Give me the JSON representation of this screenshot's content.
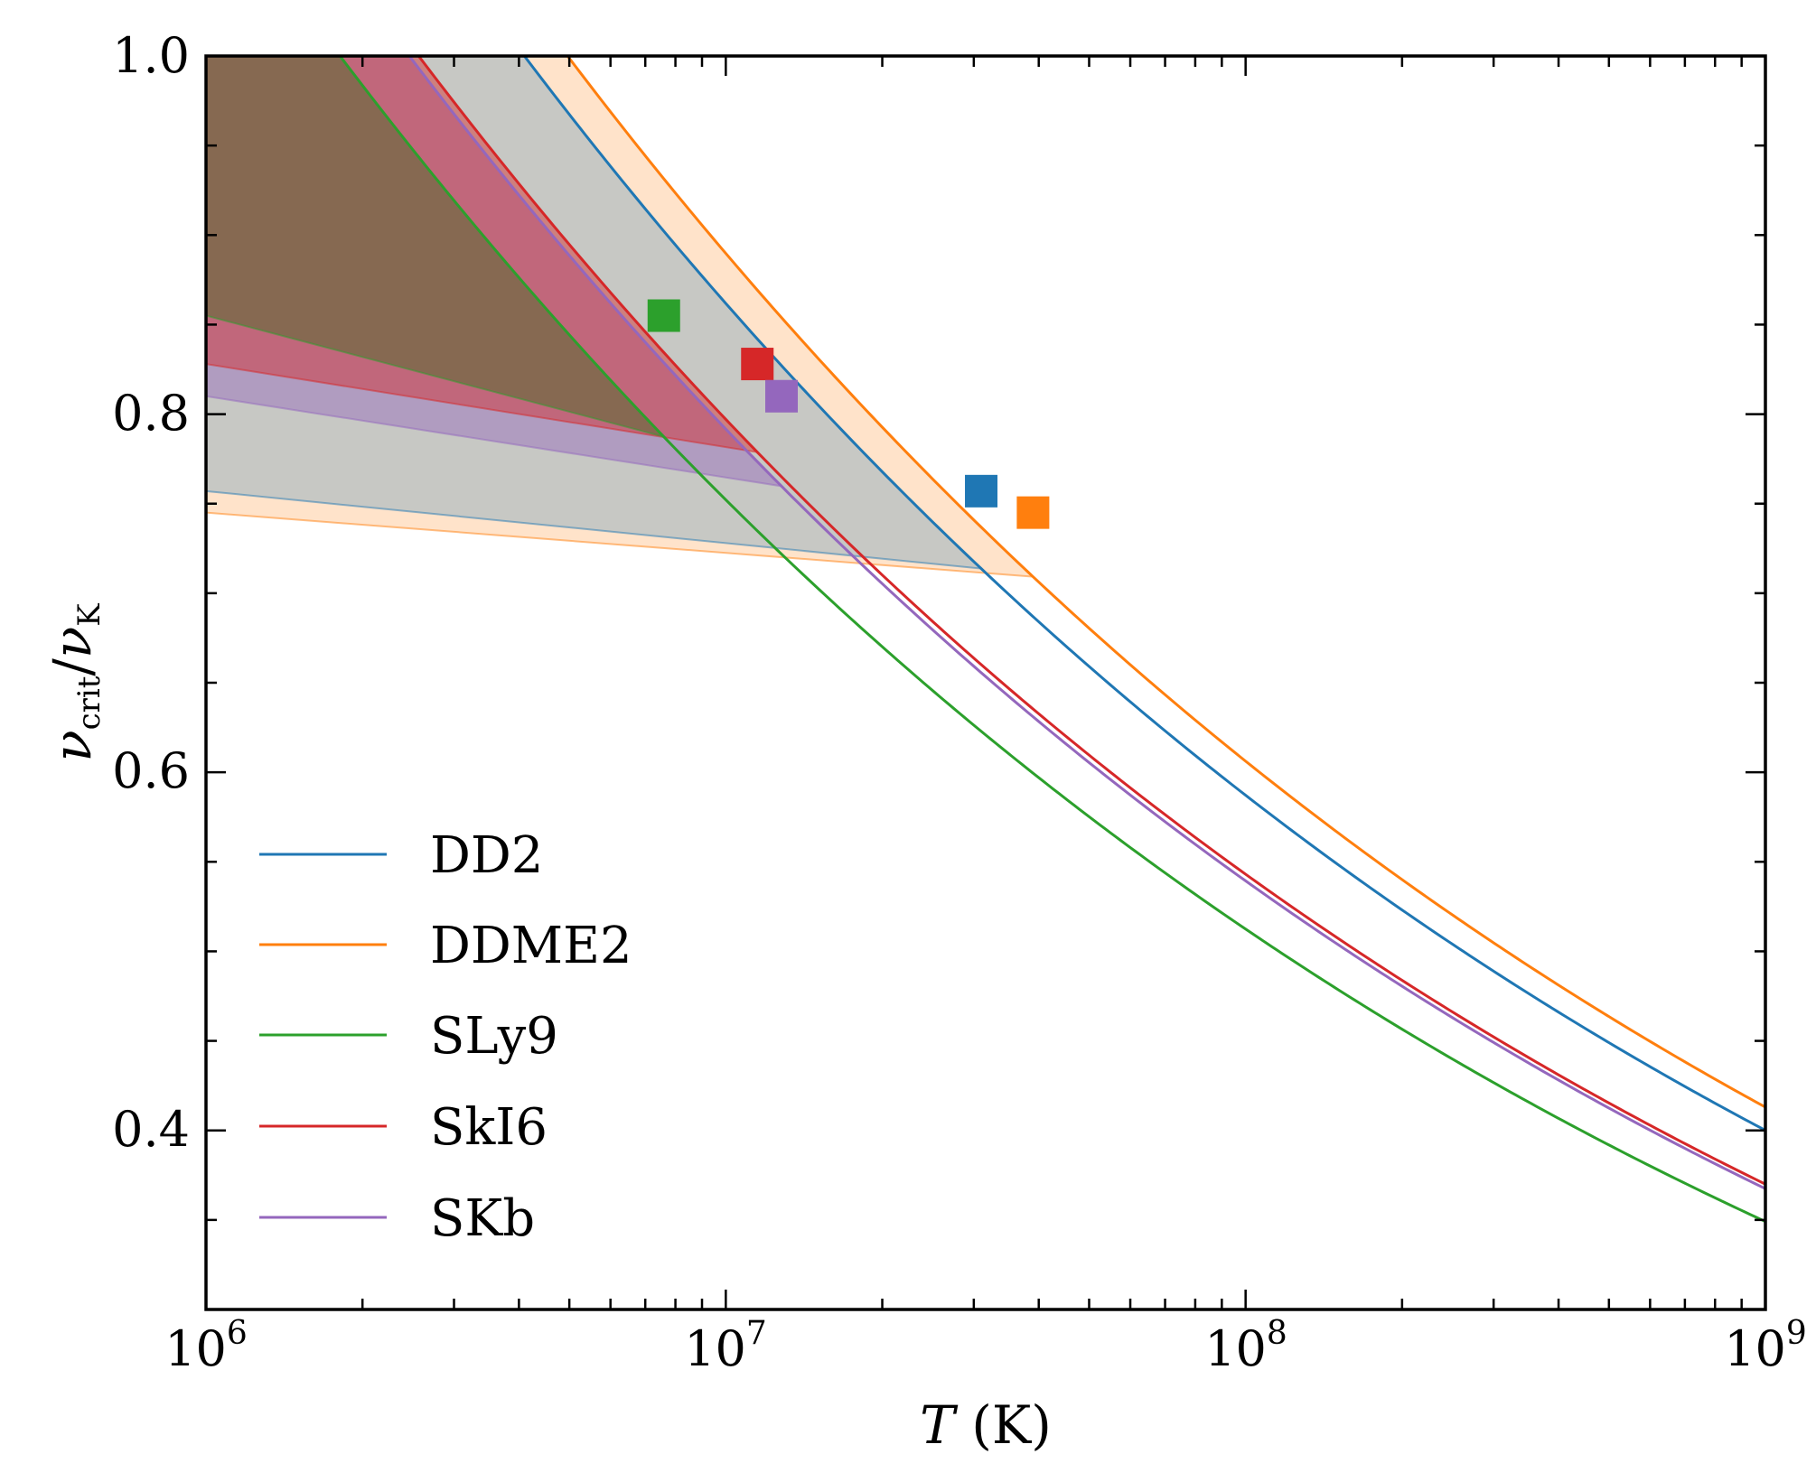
{
  "chart_data": {
    "type": "line",
    "title": "",
    "xlabel": {
      "symbol": "T",
      "unit": "(K)"
    },
    "ylabel": {
      "numerator": "ν",
      "numerator_sub": "crit",
      "denominator": "ν",
      "denominator_sub": "K"
    },
    "xscale": "log",
    "xlim": [
      1000000,
      1000000000
    ],
    "ylim": [
      0.3,
      1.0
    ],
    "x_ticks": [
      {
        "base": "10",
        "exp": "6"
      },
      {
        "base": "10",
        "exp": "7"
      },
      {
        "base": "10",
        "exp": "8"
      },
      {
        "base": "10",
        "exp": "9"
      }
    ],
    "y_ticks": [
      "0.4",
      "0.6",
      "0.8",
      "1.0"
    ],
    "y_tick_values": [
      0.4,
      0.6,
      0.8,
      1.0
    ],
    "curve_model": "y = A * T^(-1/6)",
    "legend_position": "lower-left",
    "series": [
      {
        "name": "DD2",
        "color": "#1f77b4",
        "A": 12.65,
        "marker": {
          "T": 31000000,
          "y": 0.757
        },
        "shade": "#1f77b4",
        "shade_alpha": 0.25
      },
      {
        "name": "DDME2",
        "color": "#ff7f0e",
        "A": 13.06,
        "marker": {
          "T": 39000000,
          "y": 0.745
        },
        "shade": "#ff7f0e",
        "shade_alpha": 0.22
      },
      {
        "name": "SLy9",
        "color": "#2ca02c",
        "A": 11.04,
        "marker": {
          "T": 7600000,
          "y": 0.855
        },
        "shade": "#556b2f",
        "shade_alpha": 0.55
      },
      {
        "name": "SkI6",
        "color": "#d62728",
        "A": 11.7,
        "marker": {
          "T": 11500000,
          "y": 0.828
        },
        "shade": "#d62728",
        "shade_alpha": 0.45
      },
      {
        "name": "SKb",
        "color": "#9467bd",
        "A": 11.62,
        "marker": {
          "T": 12800000,
          "y": 0.81
        },
        "shade": "#9467bd",
        "shade_alpha": 0.45
      }
    ]
  }
}
